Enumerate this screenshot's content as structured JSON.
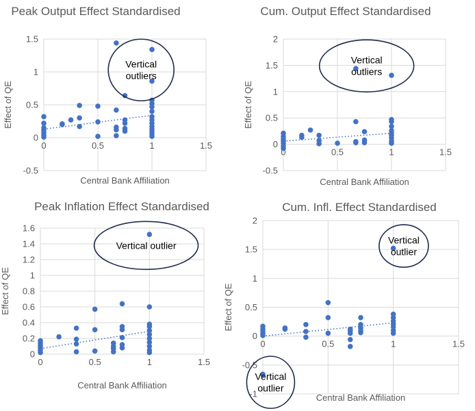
{
  "colors": {
    "marker": "#4472c4",
    "grid": "#d9d9d9",
    "text": "#595959",
    "annotation": "#1f2a4d"
  },
  "chart_data": [
    {
      "type": "scatter",
      "title": "Peak Output Effect Standardised",
      "xlabel": "Central Bank Affiliation",
      "ylabel": "Effect of QE",
      "xlim": [
        0,
        1.5
      ],
      "ylim": [
        -0.5,
        1.5
      ],
      "xticks": [
        0,
        0.5,
        1,
        1.5
      ],
      "xtick_labels": [
        "0",
        "0.5",
        "1",
        "1.5"
      ],
      "yticks": [
        -0.5,
        0,
        0.5,
        1,
        1.5
      ],
      "ytick_labels": [
        "-0.5",
        "0",
        "0.5",
        "1",
        "1.5"
      ],
      "points": [
        [
          0,
          0.32
        ],
        [
          0,
          0.22
        ],
        [
          0,
          0.15
        ],
        [
          0,
          0.12
        ],
        [
          0,
          0.08
        ],
        [
          0,
          0.04
        ],
        [
          0,
          0.01
        ],
        [
          0.17,
          0.21
        ],
        [
          0.17,
          0.2
        ],
        [
          0.25,
          0.27
        ],
        [
          0.33,
          0.49
        ],
        [
          0.33,
          0.3
        ],
        [
          0.33,
          0.17
        ],
        [
          0.5,
          0.48
        ],
        [
          0.5,
          0.24
        ],
        [
          0.5,
          0.02
        ],
        [
          0.67,
          1.44
        ],
        [
          0.67,
          0.42
        ],
        [
          0.67,
          0.16
        ],
        [
          0.67,
          0.12
        ],
        [
          0.67,
          0.03
        ],
        [
          0.75,
          0.64
        ],
        [
          0.75,
          0.27
        ],
        [
          0.75,
          0.22
        ],
        [
          0.75,
          0.14
        ],
        [
          0.75,
          0.1
        ],
        [
          1,
          1.34
        ],
        [
          1,
          0.86
        ],
        [
          1,
          0.57
        ],
        [
          1,
          0.52
        ],
        [
          1,
          0.47
        ],
        [
          1,
          0.4
        ],
        [
          1,
          0.32
        ],
        [
          1,
          0.27
        ],
        [
          1,
          0.22
        ],
        [
          1,
          0.17
        ],
        [
          1,
          0.13
        ],
        [
          1,
          0.09
        ],
        [
          1,
          0.05
        ],
        [
          1,
          0.02
        ]
      ],
      "trendline": [
        [
          0,
          0.13
        ],
        [
          1,
          0.34
        ]
      ],
      "annotation": {
        "text": [
          "Vertical",
          "outliers"
        ],
        "center": [
          0.9,
          1.03
        ]
      }
    },
    {
      "type": "scatter",
      "title": "Cum. Output Effect Standardised",
      "xlabel": "Central Bank Affiliation",
      "ylabel": "Effect of QE",
      "xlim": [
        0,
        1.5
      ],
      "ylim": [
        -0.5,
        2
      ],
      "xticks": [
        0,
        0.5,
        1,
        1.5
      ],
      "xtick_labels": [
        "0",
        "0.5",
        "1",
        "1.5"
      ],
      "yticks": [
        -0.5,
        0,
        0.5,
        1,
        1.5,
        2
      ],
      "ytick_labels": [
        "-0.5",
        "0",
        "0.5",
        "1",
        "1.5",
        "2"
      ],
      "points": [
        [
          0,
          0.21
        ],
        [
          0,
          0.15
        ],
        [
          0,
          0.1
        ],
        [
          0,
          0.06
        ],
        [
          0,
          0.02
        ],
        [
          0,
          -0.03
        ],
        [
          0,
          -0.08
        ],
        [
          0.17,
          0.17
        ],
        [
          0.17,
          0.13
        ],
        [
          0.25,
          0.27
        ],
        [
          0.33,
          0.17
        ],
        [
          0.33,
          0.07
        ],
        [
          0.33,
          0.01
        ],
        [
          0.5,
          0.02
        ],
        [
          0.67,
          1.44
        ],
        [
          0.67,
          0.43
        ],
        [
          0.67,
          0.05
        ],
        [
          0.67,
          0.03
        ],
        [
          0.75,
          0.24
        ],
        [
          0.75,
          0.08
        ],
        [
          0.75,
          0.03
        ],
        [
          1,
          1.31
        ],
        [
          1,
          0.47
        ],
        [
          1,
          0.43
        ],
        [
          1,
          0.34
        ],
        [
          1,
          0.26
        ],
        [
          1,
          0.21
        ],
        [
          1,
          0.17
        ],
        [
          1,
          0.12
        ],
        [
          1,
          0.06
        ],
        [
          1,
          0.02
        ]
      ],
      "trendline": [
        [
          0,
          0.06
        ],
        [
          1,
          0.21
        ]
      ],
      "annotation": {
        "text": [
          "Vertical",
          "outliers"
        ],
        "center": [
          0.77,
          1.49
        ]
      }
    },
    {
      "type": "scatter",
      "title": "Peak Inflation Effect Standardised",
      "xlabel": "Central Bank Affiliation",
      "ylabel": "Effect of QE",
      "xlim": [
        0,
        1.5
      ],
      "ylim": [
        0,
        1.6
      ],
      "xticks": [
        0,
        0.5,
        1,
        1.5
      ],
      "xtick_labels": [
        "0",
        "0.5",
        "1",
        "1.5"
      ],
      "yticks": [
        0,
        0.2,
        0.4,
        0.6,
        0.8,
        1,
        1.2,
        1.4,
        1.6
      ],
      "ytick_labels": [
        "0",
        "0.2",
        "0.4",
        "0.6",
        "0.8",
        "1",
        "1.2",
        "1.4",
        "1.6"
      ],
      "points": [
        [
          0,
          0.17
        ],
        [
          0,
          0.14
        ],
        [
          0,
          0.11
        ],
        [
          0,
          0.08
        ],
        [
          0,
          0.05
        ],
        [
          0,
          0.02
        ],
        [
          0.17,
          0.22
        ],
        [
          0.33,
          0.33
        ],
        [
          0.33,
          0.19
        ],
        [
          0.33,
          0.13
        ],
        [
          0.33,
          0.03
        ],
        [
          0.5,
          0.57
        ],
        [
          0.5,
          0.31
        ],
        [
          0.5,
          0.04
        ],
        [
          0.67,
          0.14
        ],
        [
          0.67,
          0.1
        ],
        [
          0.67,
          0.07
        ],
        [
          0.67,
          0.03
        ],
        [
          0.75,
          0.64
        ],
        [
          0.75,
          0.35
        ],
        [
          0.75,
          0.31
        ],
        [
          0.75,
          0.21
        ],
        [
          0.75,
          0.12
        ],
        [
          0.75,
          0.08
        ],
        [
          1,
          1.52
        ],
        [
          1,
          0.6
        ],
        [
          1,
          0.38
        ],
        [
          1,
          0.35
        ],
        [
          1,
          0.3
        ],
        [
          1,
          0.25
        ],
        [
          1,
          0.2
        ],
        [
          1,
          0.15
        ],
        [
          1,
          0.1
        ],
        [
          1,
          0.05
        ],
        [
          1,
          0.02
        ]
      ],
      "trendline": [
        [
          0,
          0.07
        ],
        [
          1,
          0.29
        ]
      ],
      "annotation": {
        "text": [
          "Vertical outlier"
        ],
        "center": [
          0.97,
          1.38
        ]
      }
    },
    {
      "type": "scatter",
      "title": "Cum. Infl. Effect Standardised",
      "xlabel": "Central Bank Affiliation",
      "ylabel": "Effect of QE",
      "xlim": [
        0,
        1.5
      ],
      "ylim": [
        -1,
        2
      ],
      "xticks": [
        0,
        0.5,
        1,
        1.5
      ],
      "xtick_labels": [
        "0",
        "0.5",
        "1",
        "1.5"
      ],
      "yticks": [
        -1,
        -0.5,
        0,
        0.5,
        1,
        1.5,
        2
      ],
      "ytick_labels": [
        "-1",
        "-0.5",
        "0",
        "0.5",
        "1",
        "1.5",
        "2"
      ],
      "points": [
        [
          0,
          0.17
        ],
        [
          0,
          0.12
        ],
        [
          0,
          0.08
        ],
        [
          0,
          0.04
        ],
        [
          0,
          0.01
        ],
        [
          0,
          -0.66
        ],
        [
          0.17,
          0.14
        ],
        [
          0.17,
          0.12
        ],
        [
          0.33,
          0.2
        ],
        [
          0.33,
          0.08
        ],
        [
          0.33,
          -0.02
        ],
        [
          0.5,
          0.58
        ],
        [
          0.5,
          0.32
        ],
        [
          0.5,
          0.05
        ],
        [
          0.67,
          0.12
        ],
        [
          0.67,
          0.09
        ],
        [
          0.67,
          0.05
        ],
        [
          0.67,
          -0.06
        ],
        [
          0.67,
          -0.18
        ],
        [
          0.75,
          0.32
        ],
        [
          0.75,
          0.2
        ],
        [
          0.75,
          0.14
        ],
        [
          0.75,
          0.09
        ],
        [
          0.75,
          0.06
        ],
        [
          1,
          1.52
        ],
        [
          1,
          0.38
        ],
        [
          1,
          0.32
        ],
        [
          1,
          0.26
        ],
        [
          1,
          0.21
        ],
        [
          1,
          0.16
        ],
        [
          1,
          0.1
        ],
        [
          1,
          0.05
        ]
      ],
      "trendline": [
        [
          0,
          0.0
        ],
        [
          1,
          0.23
        ]
      ],
      "annotation": {
        "text": [
          "Vertical",
          "outlier"
        ],
        "center": [
          1.08,
          1.56
        ]
      },
      "annotation2": {
        "text": [
          "Vertical",
          "outlier"
        ],
        "center": [
          0.06,
          -0.8
        ]
      }
    }
  ]
}
